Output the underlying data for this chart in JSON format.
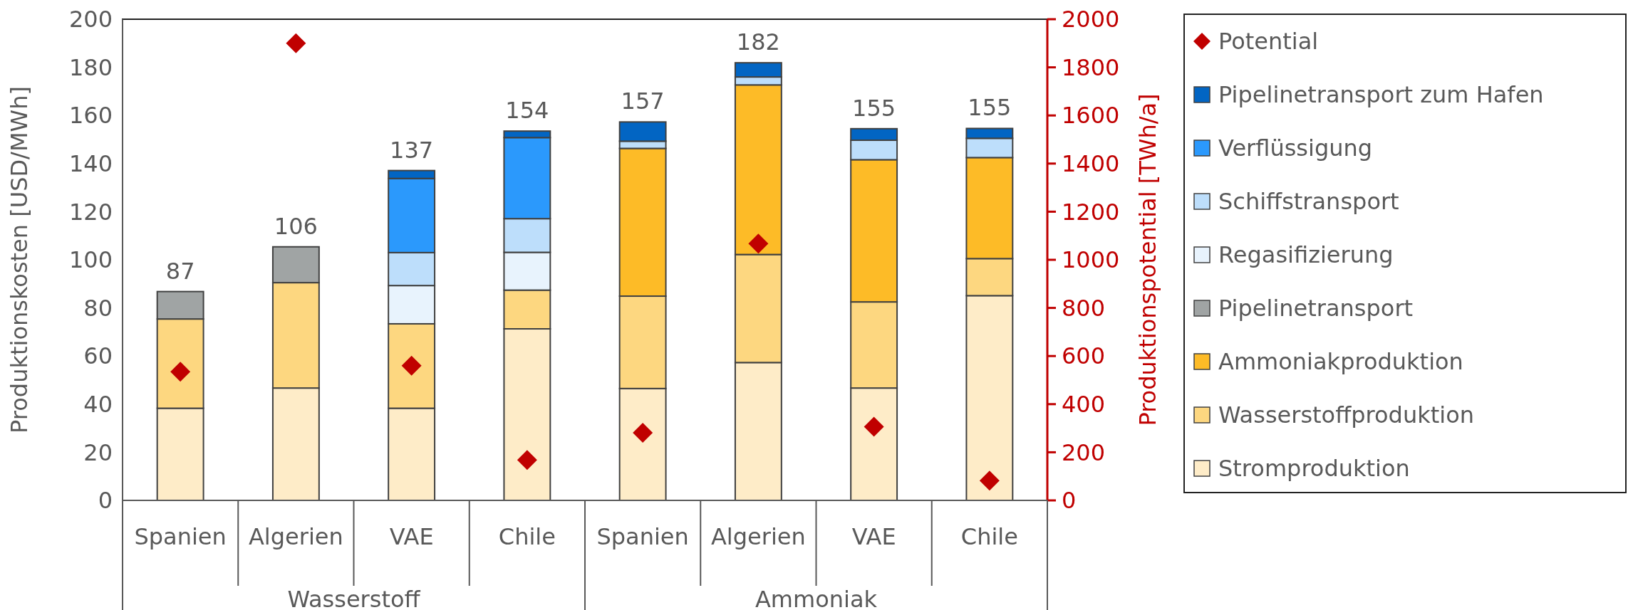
{
  "chart_data": {
    "type": "bar",
    "stacked": true,
    "categories": [
      "Spanien",
      "Algerien",
      "VAE",
      "Chile",
      "Spanien",
      "Algerien",
      "VAE",
      "Chile"
    ],
    "ylabel": "Produktionskosten [USD/MWh]",
    "y2label": "Produktionspotential [TWh/a]",
    "ylim": [
      0,
      200
    ],
    "yticks": [
      0,
      20,
      40,
      60,
      80,
      100,
      120,
      140,
      160,
      180,
      200
    ],
    "y2lim": [
      0,
      2000
    ],
    "y2ticks": [
      0,
      200,
      400,
      600,
      800,
      1000,
      1200,
      1400,
      1600,
      1800,
      2000
    ],
    "annotations": [
      "Wasserstoff",
      "Ammoniak"
    ],
    "totals": [
      "87",
      "106",
      "137",
      "154",
      "157",
      "182",
      "155",
      "155"
    ],
    "legend": "right",
    "grid": false,
    "series": [
      {
        "name": "Stromproduktion",
        "color": "#feecc8",
        "values": [
          38.3,
          46.7,
          38.3,
          71.3,
          46.5,
          57.3,
          46.7,
          85.1
        ]
      },
      {
        "name": "Wasserstoffproduktion",
        "color": "#fdd780",
        "values": [
          37.1,
          43.8,
          35.1,
          16.1,
          38.4,
          44.9,
          35.8,
          15.4
        ]
      },
      {
        "name": "Ammoniakproduktion",
        "color": "#fdbb27",
        "values": [
          null,
          null,
          null,
          null,
          61.4,
          70.5,
          59.1,
          42.0
        ]
      },
      {
        "name": "Pipelinetransport",
        "color": "#a0a4a4",
        "values": [
          11.4,
          14.9,
          null,
          null,
          null,
          null,
          null,
          null
        ]
      },
      {
        "name": "Regasifizierung",
        "color": "#e8f3fd",
        "values": [
          null,
          null,
          15.9,
          15.7,
          null,
          null,
          null,
          null
        ]
      },
      {
        "name": "Schiffstransport",
        "color": "#bddefb",
        "values": [
          null,
          null,
          13.7,
          14.0,
          3.0,
          3.3,
          8.1,
          8.0
        ]
      },
      {
        "name": "Verflüssigung",
        "color": "#2b99fc",
        "values": [
          null,
          null,
          30.8,
          33.7,
          null,
          null,
          null,
          null
        ]
      },
      {
        "name": "Pipelinetransport zum Hafen",
        "color": "#0265c3",
        "values": [
          null,
          null,
          3.3,
          2.7,
          8.0,
          5.9,
          4.8,
          4.1
        ]
      },
      {
        "name": "Potential",
        "type": "scatter",
        "axis": "y2",
        "marker": "diamond",
        "color": "#c00000",
        "values": [
          535,
          1900,
          560,
          168,
          281,
          1067,
          306,
          82
        ]
      }
    ]
  }
}
